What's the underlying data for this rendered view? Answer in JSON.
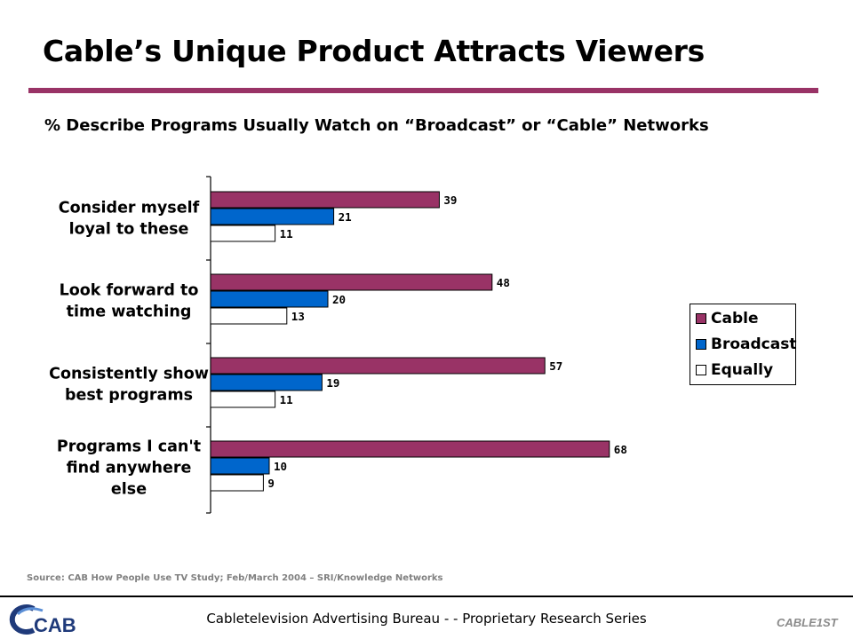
{
  "page": {
    "title": "Cable’s Unique Product Attracts Viewers",
    "source": "Source: CAB How People Use TV Study; Feb/March 2004 – SRI/Knowledge Networks",
    "footer": "Cabletelevision Advertising Bureau - - Proprietary Research Series",
    "logo_left_text": "CAB",
    "logo_right_text": "CABLE1ST"
  },
  "colors": {
    "accent": "#993366",
    "cable": "#993366",
    "broadcast": "#0066cc",
    "equally": "#ffffff"
  },
  "chart_data": {
    "type": "bar",
    "orientation": "horizontal",
    "title": "% Describe Programs Usually Watch on “Broadcast” or “Cable” Networks",
    "categories": [
      [
        "Consider myself",
        "loyal to these"
      ],
      [
        "Look forward to",
        "time watching"
      ],
      [
        "Consistently show",
        "best programs"
      ],
      [
        "Programs I can't",
        "find anywhere",
        "else"
      ]
    ],
    "series": [
      {
        "name": "Cable",
        "values": [
          39,
          48,
          57,
          68
        ]
      },
      {
        "name": "Broadcast",
        "values": [
          21,
          20,
          19,
          10
        ]
      },
      {
        "name": "Equally",
        "values": [
          11,
          13,
          11,
          9
        ]
      }
    ],
    "xlim": [
      0,
      70
    ],
    "grid": false,
    "legend_position": "right"
  }
}
